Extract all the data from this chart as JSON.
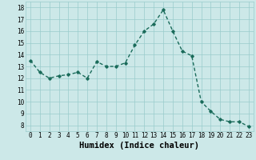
{
  "x": [
    0,
    1,
    2,
    3,
    4,
    5,
    6,
    7,
    8,
    9,
    10,
    11,
    12,
    13,
    14,
    15,
    16,
    17,
    18,
    19,
    20,
    21,
    22,
    23
  ],
  "y": [
    13.5,
    12.5,
    12.0,
    12.2,
    12.3,
    12.5,
    12.0,
    13.4,
    13.0,
    13.0,
    13.3,
    14.8,
    16.0,
    16.6,
    17.8,
    16.0,
    14.3,
    13.9,
    10.0,
    9.2,
    8.5,
    8.3,
    8.3,
    7.9
  ],
  "line_color": "#1a6b5a",
  "marker": "D",
  "marker_size": 1.8,
  "bg_color": "#cce8e8",
  "grid_color": "#99cccc",
  "xlabel": "Humidex (Indice chaleur)",
  "ylim": [
    7.5,
    18.5
  ],
  "xlim": [
    -0.5,
    23.5
  ],
  "yticks": [
    8,
    9,
    10,
    11,
    12,
    13,
    14,
    15,
    16,
    17,
    18
  ],
  "xticks": [
    0,
    1,
    2,
    3,
    4,
    5,
    6,
    7,
    8,
    9,
    10,
    11,
    12,
    13,
    14,
    15,
    16,
    17,
    18,
    19,
    20,
    21,
    22,
    23
  ],
  "tick_label_size": 5.5,
  "xlabel_size": 7.5,
  "line_width": 1.0
}
